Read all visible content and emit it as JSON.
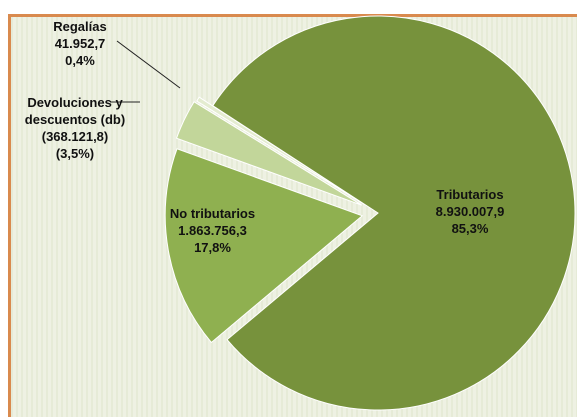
{
  "chart_data": {
    "type": "pie",
    "categories": [
      "Tributarios",
      "No tributarios",
      "Devoluciones y descuentos (db)",
      "Regalías"
    ],
    "values": [
      8930007.9,
      1863756.3,
      -368121.8,
      41952.7
    ],
    "value_labels": [
      "8.930.007,9",
      "1.863.756,3",
      "(368.121,8)",
      "41.952,7"
    ],
    "percentages": [
      85.3,
      17.8,
      -3.5,
      0.4
    ],
    "percentage_labels": [
      "85,3%",
      "17,8%",
      "(3,5%)",
      "0,4%"
    ],
    "colors": [
      "#77923c",
      "#8fb050",
      "#c2d69a",
      "#e4ecd0"
    ]
  }
}
